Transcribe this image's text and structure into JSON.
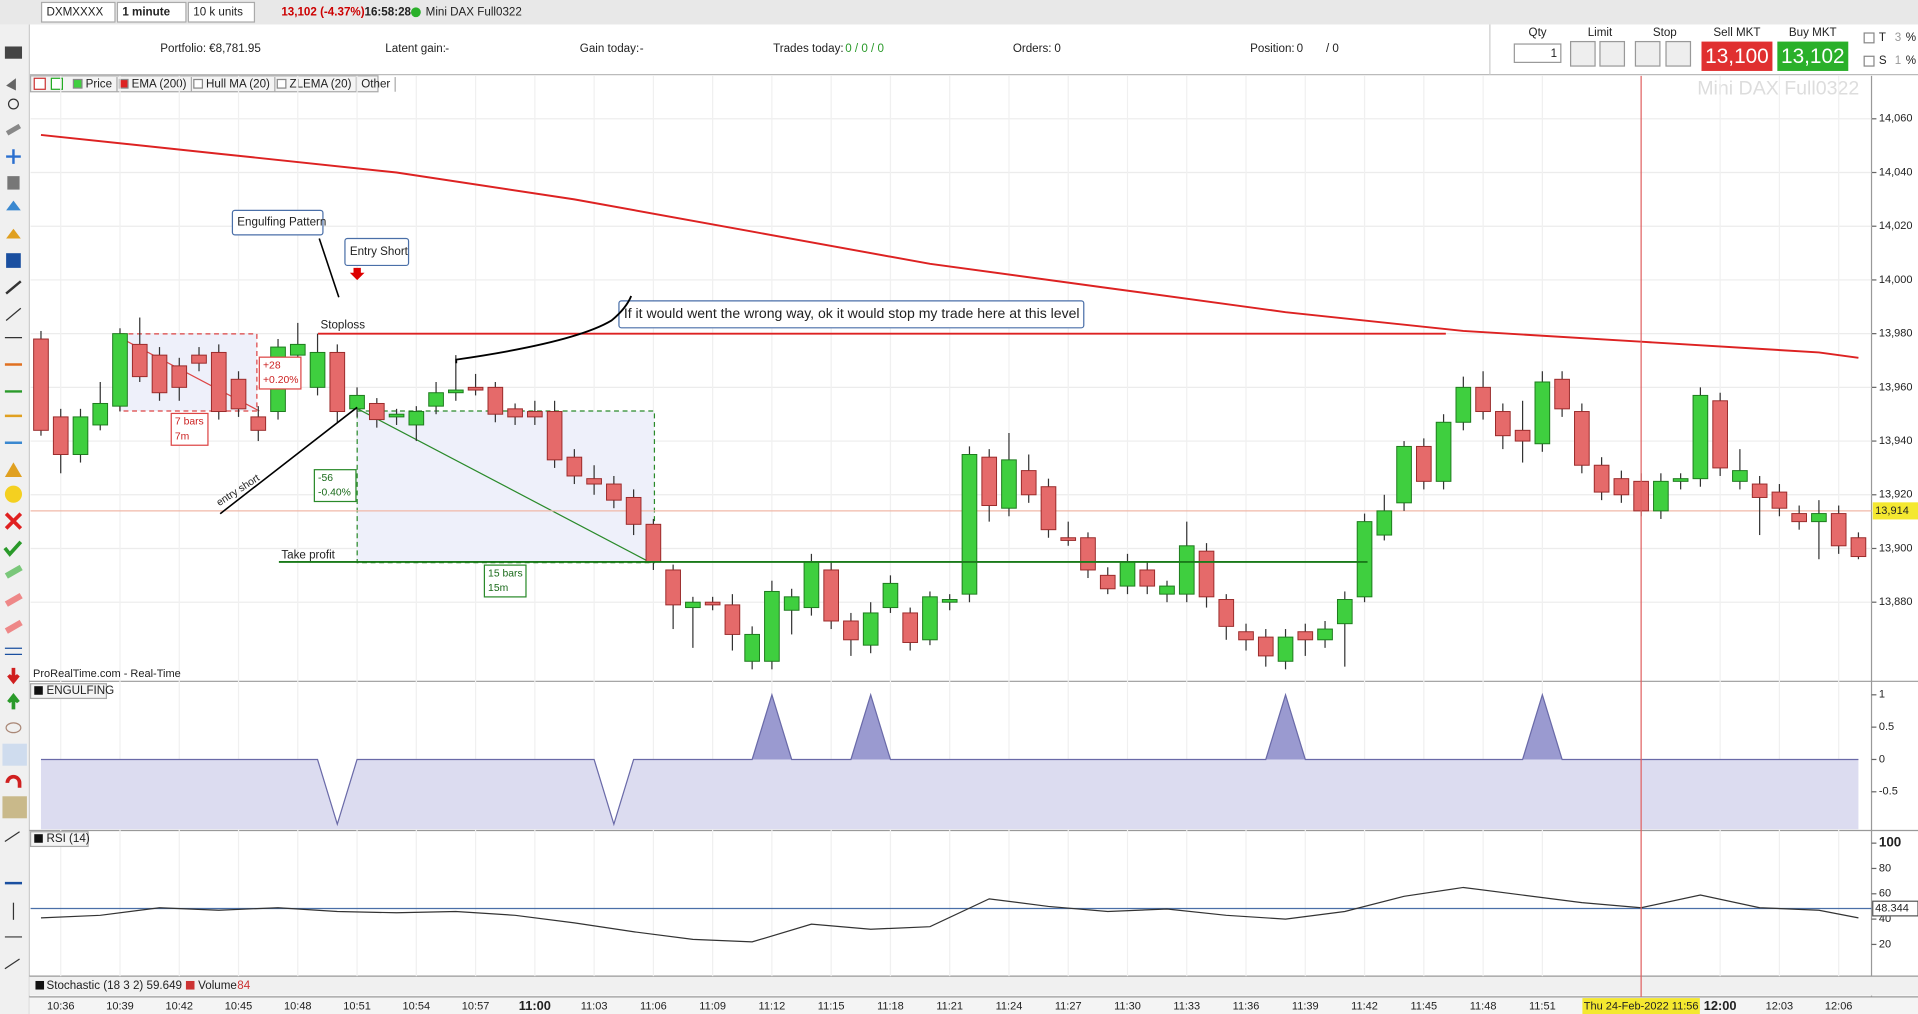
{
  "toolbar": {
    "symbol": "DXMXXXX",
    "interval": "1 minute",
    "units": "10 k units",
    "quote": "13,102 (-4.37%)",
    "time": "16:58:28",
    "instrument": "Mini DAX Full0322"
  },
  "account": {
    "portfolio_label": "Portfolio:",
    "portfolio": "€8,781.95",
    "latent_label": "Latent gain:",
    "latent": "-",
    "gain_label": "Gain today:",
    "gain": "-",
    "trades_label": "Trades today:",
    "trades": "0 / 0 / 0",
    "orders_label": "Orders:",
    "orders": "0",
    "position_label": "Position:",
    "position": "0",
    "position2": "/ 0"
  },
  "order_panel": {
    "qty_label": "Qty",
    "qty": "1",
    "limit": "Limit",
    "stop": "Stop",
    "sell_label": "Sell MKT",
    "sell": "13,100",
    "buy_label": "Buy MKT",
    "buy": "13,102",
    "t": "T",
    "s": "S",
    "t_val": "3",
    "s_val": "1",
    "pct": "%"
  },
  "indicators": [
    "Price",
    "EMA (200)",
    "Hull MA (20)",
    "ZLEMA (20)",
    "Other"
  ],
  "annotations": {
    "engulfing": "Engulfing Pattern",
    "entry": "Entry Short",
    "stoploss": "Stoploss",
    "note": "If it would went the wrong way, ok it would stop my trade here at this level",
    "gain_pts": "+28",
    "gain_pct": "+0.20%",
    "bars1": "7 bars",
    "time1": "7m",
    "loss_pts": "-56",
    "loss_pct": "-0.40%",
    "bars2": "15 bars",
    "time2": "15m",
    "entry_short": "entry short",
    "take_profit": "Take profit",
    "source": "ProRealTime.com - Real-Time"
  },
  "chart_data": {
    "type": "candlestick",
    "watermark": "Mini DAX Full0322",
    "x": [
      "10:35",
      "10:36",
      "10:37",
      "10:38",
      "10:39",
      "10:40",
      "10:41",
      "10:42",
      "10:43",
      "10:44",
      "10:45",
      "10:46",
      "10:47",
      "10:48",
      "10:49",
      "10:50",
      "10:51",
      "10:52",
      "10:53",
      "10:54",
      "10:55",
      "10:56",
      "10:57",
      "10:58",
      "10:59",
      "11:00",
      "11:01",
      "11:02",
      "11:03",
      "11:04",
      "11:05",
      "11:06",
      "11:07",
      "11:08",
      "11:09",
      "11:10",
      "11:11",
      "11:12",
      "11:13",
      "11:14",
      "11:15",
      "11:16",
      "11:17",
      "11:18",
      "11:19",
      "11:20",
      "11:21",
      "11:22",
      "11:23",
      "11:24",
      "11:25",
      "11:26",
      "11:27",
      "11:28",
      "11:29",
      "11:30",
      "11:31",
      "11:32",
      "11:33",
      "11:34",
      "11:35",
      "11:36",
      "11:37",
      "11:38",
      "11:39",
      "11:40",
      "11:41",
      "11:42",
      "11:43",
      "11:44",
      "11:45",
      "11:46",
      "11:47",
      "11:48",
      "11:49",
      "11:50",
      "11:51",
      "11:52",
      "11:53",
      "11:54",
      "11:55",
      "11:56",
      "11:57",
      "11:58",
      "11:59",
      "12:00",
      "12:01",
      "12:02",
      "12:03",
      "12:04",
      "12:05",
      "12:06",
      "12:07"
    ],
    "ohlc": [
      [
        13978,
        13981,
        13942,
        13944
      ],
      [
        13949,
        13952,
        13928,
        13935
      ],
      [
        13935,
        13952,
        13932,
        13949
      ],
      [
        13946,
        13962,
        13944,
        13954
      ],
      [
        13953,
        13982,
        13951,
        13980
      ],
      [
        13976,
        13986,
        13962,
        13964
      ],
      [
        13972,
        13975,
        13955,
        13958
      ],
      [
        13968,
        13971,
        13955,
        13960
      ],
      [
        13972,
        13975,
        13966,
        13969
      ],
      [
        13973,
        13976,
        13948,
        13951
      ],
      [
        13963,
        13966,
        13949,
        13952
      ],
      [
        13949,
        13953,
        13940,
        13944
      ],
      [
        13951,
        13978,
        13948,
        13975
      ],
      [
        13972,
        13984,
        13968,
        13976
      ],
      [
        13960,
        13980,
        13957,
        13973
      ],
      [
        13973,
        13976,
        13947,
        13951
      ],
      [
        13952,
        13960,
        13949,
        13957
      ],
      [
        13954,
        13956,
        13945,
        13948
      ],
      [
        13949,
        13952,
        13946,
        13950
      ],
      [
        13946,
        13953,
        13940,
        13951
      ],
      [
        13953,
        13962,
        13950,
        13958
      ],
      [
        13958,
        13972,
        13955,
        13959
      ],
      [
        13960,
        13965,
        13957,
        13959
      ],
      [
        13960,
        13962,
        13947,
        13950
      ],
      [
        13952,
        13954,
        13946,
        13949
      ],
      [
        13951,
        13955,
        13946,
        13949
      ],
      [
        13951,
        13955,
        13930,
        13933
      ],
      [
        13934,
        13937,
        13924,
        13927
      ],
      [
        13926,
        13931,
        13920,
        13924
      ],
      [
        13924,
        13927,
        13915,
        13918
      ],
      [
        13919,
        13922,
        13905,
        13909
      ],
      [
        13909,
        13911,
        13892,
        13895
      ],
      [
        13892,
        13894,
        13870,
        13879
      ],
      [
        13878,
        13882,
        13863,
        13880
      ],
      [
        13880,
        13882,
        13877,
        13879
      ],
      [
        13879,
        13883,
        13862,
        13868
      ],
      [
        13858,
        13871,
        13855,
        13868
      ],
      [
        13858,
        13888,
        13855,
        13884
      ],
      [
        13877,
        13885,
        13868,
        13882
      ],
      [
        13878,
        13898,
        13875,
        13895
      ],
      [
        13892,
        13895,
        13870,
        13873
      ],
      [
        13873,
        13876,
        13860,
        13866
      ],
      [
        13864,
        13880,
        13861,
        13876
      ],
      [
        13878,
        13890,
        13876,
        13887
      ],
      [
        13876,
        13878,
        13862,
        13865
      ],
      [
        13866,
        13884,
        13864,
        13882
      ],
      [
        13880,
        13883,
        13877,
        13881
      ],
      [
        13883,
        13938,
        13880,
        13935
      ],
      [
        13934,
        13937,
        13910,
        13916
      ],
      [
        13915,
        13943,
        13912,
        13933
      ],
      [
        13929,
        13935,
        13917,
        13920
      ],
      [
        13923,
        13926,
        13904,
        13907
      ],
      [
        13904,
        13910,
        13901,
        13903
      ],
      [
        13904,
        13906,
        13889,
        13892
      ],
      [
        13890,
        13893,
        13883,
        13885
      ],
      [
        13886,
        13898,
        13883,
        13895
      ],
      [
        13892,
        13895,
        13883,
        13886
      ],
      [
        13883,
        13888,
        13880,
        13886
      ],
      [
        13883,
        13910,
        13880,
        13901
      ],
      [
        13899,
        13902,
        13878,
        13882
      ],
      [
        13881,
        13883,
        13866,
        13871
      ],
      [
        13869,
        13872,
        13862,
        13866
      ],
      [
        13867,
        13870,
        13856,
        13860
      ],
      [
        13858,
        13870,
        13855,
        13867
      ],
      [
        13869,
        13872,
        13860,
        13866
      ],
      [
        13866,
        13873,
        13863,
        13870
      ],
      [
        13872,
        13884,
        13856,
        13881
      ],
      [
        13882,
        13913,
        13880,
        13910
      ],
      [
        13905,
        13920,
        13903,
        13914
      ],
      [
        13917,
        13940,
        13914,
        13938
      ],
      [
        13938,
        13941,
        13922,
        13925
      ],
      [
        13925,
        13950,
        13922,
        13947
      ],
      [
        13947,
        13964,
        13944,
        13960
      ],
      [
        13960,
        13966,
        13948,
        13951
      ],
      [
        13951,
        13954,
        13937,
        13942
      ],
      [
        13944,
        13955,
        13932,
        13940
      ],
      [
        13939,
        13966,
        13936,
        13962
      ],
      [
        13963,
        13966,
        13949,
        13952
      ],
      [
        13951,
        13954,
        13928,
        13931
      ],
      [
        13931,
        13934,
        13918,
        13921
      ],
      [
        13926,
        13929,
        13917,
        13920
      ],
      [
        13925,
        13928,
        13912,
        13914
      ],
      [
        13914,
        13928,
        13911,
        13925
      ],
      [
        13925,
        13928,
        13922,
        13926
      ],
      [
        13926,
        13960,
        13923,
        13957
      ],
      [
        13955,
        13958,
        13927,
        13930
      ],
      [
        13925,
        13937,
        13922,
        13929
      ],
      [
        13924,
        13927,
        13905,
        13919
      ],
      [
        13921,
        13924,
        13912,
        13915
      ],
      [
        13913,
        13916,
        13907,
        13910
      ],
      [
        13910,
        13918,
        13896,
        13913
      ],
      [
        13913,
        13916,
        13898,
        13901
      ],
      [
        13904,
        13906,
        13896,
        13897
      ]
    ],
    "up_color": "#3fcf3f",
    "down_color": "#e56a6a",
    "ema": {
      "name": "EMA (200)",
      "color": "#dd2222",
      "x": [
        "10:35",
        "10:44",
        "10:53",
        "11:02",
        "11:11",
        "11:20",
        "11:29",
        "11:38",
        "11:47",
        "11:56",
        "12:05",
        "12:07"
      ],
      "values": [
        14054,
        14047,
        14040,
        14030,
        14018,
        14006,
        13997,
        13988,
        13981,
        13977,
        13973,
        13971
      ]
    },
    "levels": {
      "stoploss": 13980,
      "take_profit": 13895
    },
    "current_price": {
      "value": 13914,
      "label": "13,914"
    },
    "ylim": [
      13851,
      14076
    ],
    "yticks": [
      {
        "value": 14060,
        "label": "14,060"
      },
      {
        "value": 14040,
        "label": "14,040"
      },
      {
        "value": 14020,
        "label": "14,020"
      },
      {
        "value": 14000,
        "label": "14,000"
      },
      {
        "value": 13980,
        "label": "13,980"
      },
      {
        "value": 13960,
        "label": "13,960"
      },
      {
        "value": 13940,
        "label": "13,940"
      },
      {
        "value": 13920,
        "label": "13,920"
      },
      {
        "value": 13900,
        "label": "13,900"
      },
      {
        "value": 13880,
        "label": "13,880"
      }
    ],
    "xticks": [
      "10:36",
      "10:39",
      "10:42",
      "10:45",
      "10:48",
      "10:51",
      "10:54",
      "10:57",
      "11:00",
      "11:03",
      "11:06",
      "11:09",
      "11:12",
      "11:15",
      "11:18",
      "11:21",
      "11:24",
      "11:27",
      "11:30",
      "11:33",
      "11:36",
      "11:39",
      "11:42",
      "11:45",
      "11:48",
      "11:51",
      "12:00",
      "12:03",
      "12:06"
    ],
    "cursor": {
      "x": "11:56",
      "label": "Thu 24-Feb-2022 11:56"
    },
    "engulfing": {
      "name": "ENGULFING",
      "color": "#6a6aa8",
      "ylim": [
        -1.08,
        1.19
      ],
      "yticks": [
        1,
        0.5,
        0,
        -0.5
      ],
      "values": [
        0,
        0,
        0,
        0,
        0,
        0,
        0,
        0,
        0,
        0,
        0,
        0,
        0,
        0,
        0,
        -1,
        0,
        0,
        0,
        0,
        0,
        0,
        0,
        0,
        0,
        0,
        0,
        0,
        0,
        -1,
        0,
        0,
        0,
        0,
        0,
        0,
        0,
        1,
        0,
        0,
        0,
        0,
        1,
        0,
        0,
        0,
        0,
        0,
        0,
        0,
        0,
        0,
        0,
        0,
        0,
        0,
        0,
        0,
        0,
        0,
        0,
        0,
        0,
        1,
        0,
        0,
        0,
        0,
        0,
        0,
        0,
        0,
        0,
        0,
        0,
        0,
        1,
        0,
        0,
        0,
        0,
        0,
        0,
        0,
        0,
        0,
        0,
        0,
        0,
        0,
        0,
        0,
        0
      ]
    },
    "rsi": {
      "name": "RSI (14)",
      "color": "#333333",
      "ylim": [
        -5,
        109
      ],
      "yticks": [
        100,
        80,
        60,
        40,
        20
      ],
      "current": 48.344,
      "x": [
        "10:35",
        "10:38",
        "10:41",
        "10:44",
        "10:47",
        "10:50",
        "10:53",
        "10:56",
        "10:59",
        "11:02",
        "11:05",
        "11:08",
        "11:11",
        "11:14",
        "11:17",
        "11:20",
        "11:23",
        "11:26",
        "11:29",
        "11:32",
        "11:35",
        "11:38",
        "11:41",
        "11:44",
        "11:47",
        "11:50",
        "11:53",
        "11:56",
        "11:59",
        "12:02",
        "12:05",
        "12:07"
      ],
      "values": [
        41,
        43,
        49,
        47,
        49,
        46,
        45,
        46,
        43,
        37,
        30,
        24,
        22,
        36,
        32,
        34,
        56,
        50,
        46,
        48,
        43,
        40,
        46,
        58,
        65,
        59,
        53,
        49,
        59,
        49,
        47,
        41
      ]
    },
    "footer": {
      "stochastic": "Stochastic (18 3 2) 59.649",
      "volume": "Volume",
      "volume_value": "84"
    }
  }
}
